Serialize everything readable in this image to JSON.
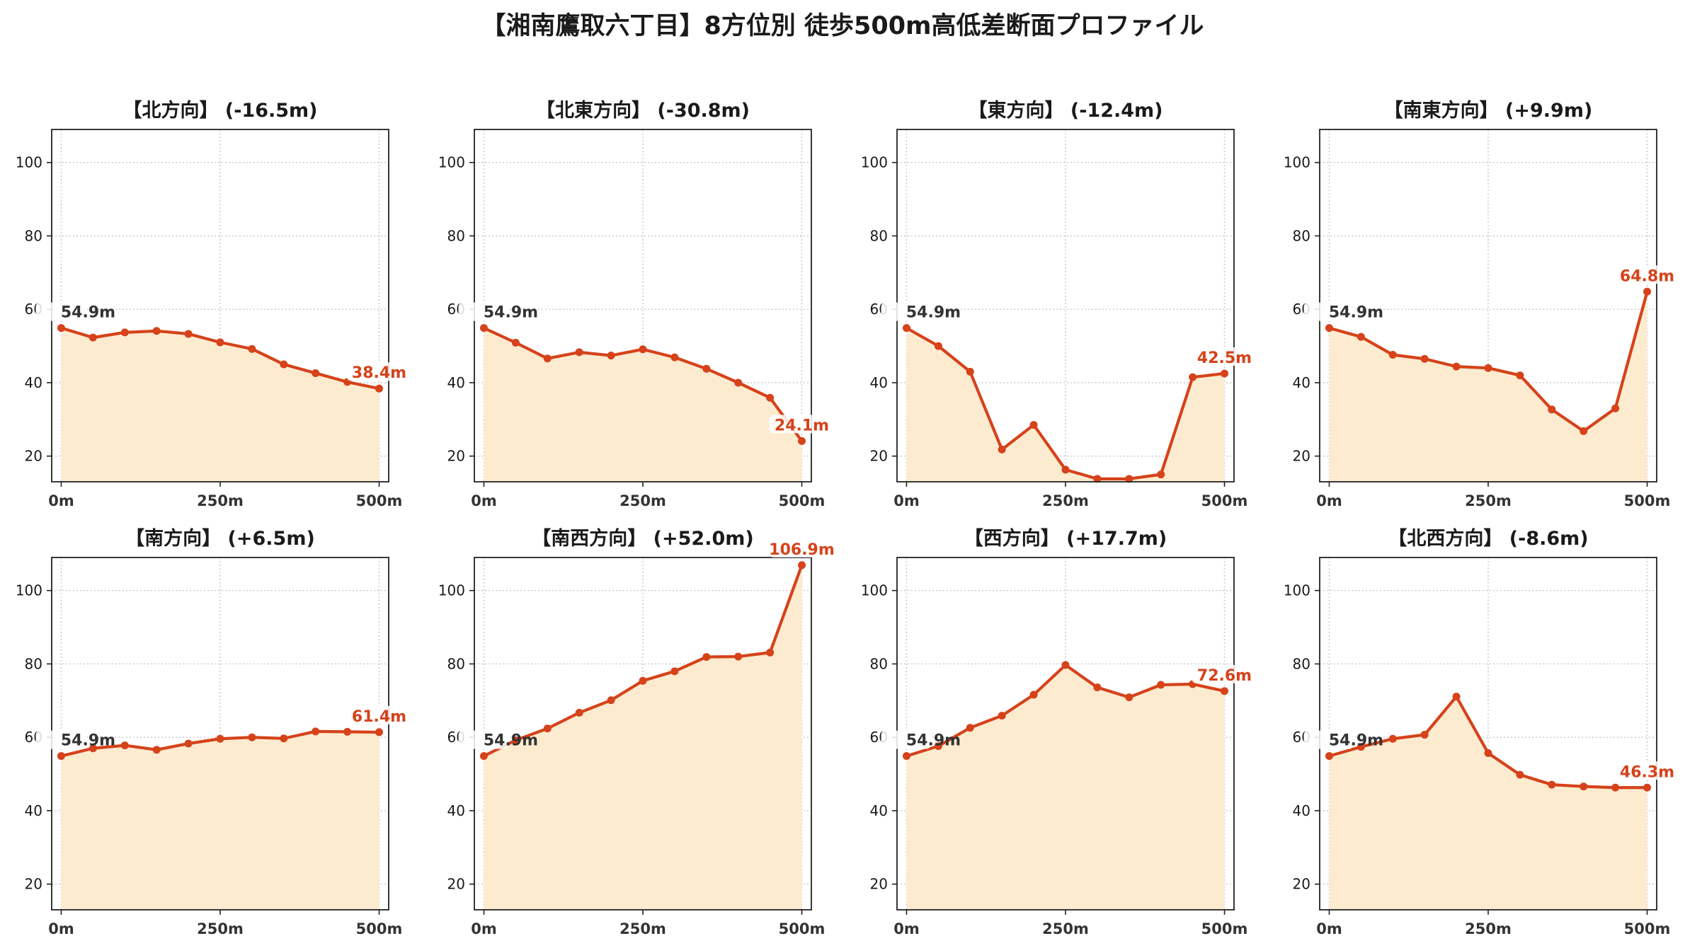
{
  "title": "【湘南鷹取六丁目】8方位別 徒歩500m高低差断面プロファイル",
  "colors": {
    "line": "#d6421a",
    "fill": "#fdebd0",
    "grid": "#c8c8c8",
    "axis": "#222222",
    "start_label": "#333333"
  },
  "chart_data": [
    {
      "type": "area",
      "title": "【北方向】 (-16.5m)",
      "x": [
        0,
        50,
        100,
        150,
        200,
        250,
        300,
        350,
        400,
        450,
        500
      ],
      "values": [
        54.9,
        52.3,
        53.7,
        54.1,
        53.3,
        51.0,
        49.2,
        45.0,
        42.6,
        40.2,
        38.4
      ],
      "start_label": "54.9m",
      "end_label": "38.4m",
      "xticks": [
        {
          "value": 0,
          "label": "0m"
        },
        {
          "value": 250,
          "label": "250m"
        },
        {
          "value": 500,
          "label": "500m"
        }
      ],
      "yticks": [
        20,
        40,
        60,
        80,
        100
      ],
      "xlim": [
        -15,
        515
      ],
      "ylim": [
        13,
        109
      ],
      "grid": true
    },
    {
      "type": "area",
      "title": "【北東方向】 (-30.8m)",
      "x": [
        0,
        50,
        100,
        150,
        200,
        250,
        300,
        350,
        400,
        450,
        500
      ],
      "values": [
        54.9,
        50.9,
        46.6,
        48.3,
        47.4,
        49.1,
        46.9,
        43.8,
        40.0,
        35.9,
        24.1
      ],
      "start_label": "54.9m",
      "end_label": "24.1m",
      "xticks": [
        {
          "value": 0,
          "label": "0m"
        },
        {
          "value": 250,
          "label": "250m"
        },
        {
          "value": 500,
          "label": "500m"
        }
      ],
      "yticks": [
        20,
        40,
        60,
        80,
        100
      ],
      "xlim": [
        -15,
        515
      ],
      "ylim": [
        13,
        109
      ],
      "grid": true
    },
    {
      "type": "area",
      "title": "【東方向】 (-12.4m)",
      "x": [
        0,
        50,
        100,
        150,
        200,
        250,
        300,
        350,
        400,
        450,
        500
      ],
      "values": [
        54.9,
        50.0,
        43.0,
        21.8,
        28.5,
        16.3,
        13.8,
        13.8,
        15.0,
        41.5,
        42.5
      ],
      "start_label": "54.9m",
      "end_label": "42.5m",
      "xticks": [
        {
          "value": 0,
          "label": "0m"
        },
        {
          "value": 250,
          "label": "250m"
        },
        {
          "value": 500,
          "label": "500m"
        }
      ],
      "yticks": [
        20,
        40,
        60,
        80,
        100
      ],
      "xlim": [
        -15,
        515
      ],
      "ylim": [
        13,
        109
      ],
      "grid": true
    },
    {
      "type": "area",
      "title": "【南東方向】 (+9.9m)",
      "x": [
        0,
        50,
        100,
        150,
        200,
        250,
        300,
        350,
        400,
        450,
        500
      ],
      "values": [
        54.9,
        52.5,
        47.6,
        46.5,
        44.4,
        44.0,
        42.0,
        32.7,
        26.8,
        33.0,
        64.8
      ],
      "start_label": "54.9m",
      "end_label": "64.8m",
      "xticks": [
        {
          "value": 0,
          "label": "0m"
        },
        {
          "value": 250,
          "label": "250m"
        },
        {
          "value": 500,
          "label": "500m"
        }
      ],
      "yticks": [
        20,
        40,
        60,
        80,
        100
      ],
      "xlim": [
        -15,
        515
      ],
      "ylim": [
        13,
        109
      ],
      "grid": true
    },
    {
      "type": "area",
      "title": "【南方向】 (+6.5m)",
      "x": [
        0,
        50,
        100,
        150,
        200,
        250,
        300,
        350,
        400,
        450,
        500
      ],
      "values": [
        54.9,
        57.0,
        57.8,
        56.6,
        58.3,
        59.6,
        60.0,
        59.7,
        61.6,
        61.5,
        61.4
      ],
      "start_label": "54.9m",
      "end_label": "61.4m",
      "xticks": [
        {
          "value": 0,
          "label": "0m"
        },
        {
          "value": 250,
          "label": "250m"
        },
        {
          "value": 500,
          "label": "500m"
        }
      ],
      "yticks": [
        20,
        40,
        60,
        80,
        100
      ],
      "xlim": [
        -15,
        515
      ],
      "ylim": [
        13,
        109
      ],
      "grid": true
    },
    {
      "type": "area",
      "title": "【南西方向】 (+52.0m)",
      "x": [
        0,
        50,
        100,
        150,
        200,
        250,
        300,
        350,
        400,
        450,
        500
      ],
      "values": [
        54.9,
        59.2,
        62.4,
        66.7,
        70.1,
        75.4,
        78.0,
        81.9,
        82.0,
        83.1,
        106.9
      ],
      "start_label": "54.9m",
      "end_label": "106.9m",
      "xticks": [
        {
          "value": 0,
          "label": "0m"
        },
        {
          "value": 250,
          "label": "250m"
        },
        {
          "value": 500,
          "label": "500m"
        }
      ],
      "yticks": [
        20,
        40,
        60,
        80,
        100
      ],
      "xlim": [
        -15,
        515
      ],
      "ylim": [
        13,
        109
      ],
      "grid": true
    },
    {
      "type": "area",
      "title": "【西方向】 (+17.7m)",
      "x": [
        0,
        50,
        100,
        150,
        200,
        250,
        300,
        350,
        400,
        450,
        500
      ],
      "values": [
        54.9,
        57.6,
        62.6,
        65.9,
        71.6,
        79.7,
        73.6,
        70.9,
        74.3,
        74.5,
        72.6
      ],
      "start_label": "54.9m",
      "end_label": "72.6m",
      "xticks": [
        {
          "value": 0,
          "label": "0m"
        },
        {
          "value": 250,
          "label": "250m"
        },
        {
          "value": 500,
          "label": "500m"
        }
      ],
      "yticks": [
        20,
        40,
        60,
        80,
        100
      ],
      "xlim": [
        -15,
        515
      ],
      "ylim": [
        13,
        109
      ],
      "grid": true
    },
    {
      "type": "area",
      "title": "【北西方向】 (-8.6m)",
      "x": [
        0,
        50,
        100,
        150,
        200,
        250,
        300,
        350,
        400,
        450,
        500
      ],
      "values": [
        54.9,
        57.4,
        59.6,
        60.7,
        71.1,
        55.7,
        49.8,
        47.1,
        46.6,
        46.3,
        46.3
      ],
      "start_label": "54.9m",
      "end_label": "46.3m",
      "xticks": [
        {
          "value": 0,
          "label": "0m"
        },
        {
          "value": 250,
          "label": "250m"
        },
        {
          "value": 500,
          "label": "500m"
        }
      ],
      "yticks": [
        20,
        40,
        60,
        80,
        100
      ],
      "xlim": [
        -15,
        515
      ],
      "ylim": [
        13,
        109
      ],
      "grid": true
    }
  ]
}
